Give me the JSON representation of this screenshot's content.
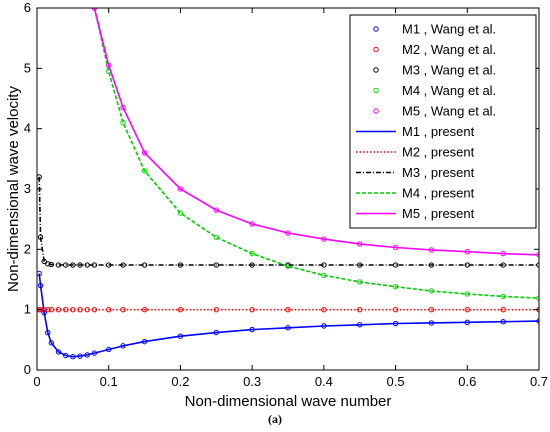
{
  "caption": "(a)",
  "chart_data": {
    "type": "line",
    "xlabel": "Non-dimensional wave number",
    "ylabel": "Non-dimensional wave velocity",
    "xlim": [
      0,
      0.7
    ],
    "ylim": [
      0,
      6
    ],
    "xticks": [
      0,
      0.1,
      0.2,
      0.3,
      0.4,
      0.5,
      0.6,
      0.7
    ],
    "xtick_labels": [
      "0",
      "0.1",
      "0.2",
      "0.3",
      "0.4",
      "0.5",
      "0.6",
      "0.7"
    ],
    "yticks": [
      0,
      1,
      2,
      3,
      4,
      5,
      6
    ],
    "ytick_labels": [
      "0",
      "1",
      "2",
      "3",
      "4",
      "5",
      "6"
    ],
    "grid": false,
    "legend_position": "top-right",
    "x": [
      0.003,
      0.005,
      0.01,
      0.015,
      0.02,
      0.03,
      0.04,
      0.05,
      0.06,
      0.07,
      0.08,
      0.1,
      0.12,
      0.15,
      0.2,
      0.25,
      0.3,
      0.35,
      0.4,
      0.45,
      0.5,
      0.55,
      0.6,
      0.65,
      0.7
    ],
    "series": [
      {
        "name": "M1 , Wang et al.",
        "color": "#0000ff",
        "style": "markers",
        "values": [
          1.6,
          1.4,
          0.95,
          0.62,
          0.45,
          0.3,
          0.24,
          0.22,
          0.23,
          0.25,
          0.28,
          0.34,
          0.4,
          0.47,
          0.56,
          0.62,
          0.67,
          0.7,
          0.73,
          0.75,
          0.77,
          0.78,
          0.79,
          0.8,
          0.81
        ]
      },
      {
        "name": "M2 , Wang et al.",
        "color": "#ff0000",
        "style": "markers",
        "values": [
          1.0,
          1.0,
          1.0,
          1.0,
          1.0,
          1.0,
          1.0,
          1.0,
          1.0,
          1.0,
          1.0,
          1.0,
          1.0,
          1.0,
          1.0,
          1.0,
          1.0,
          1.0,
          1.0,
          1.0,
          1.0,
          1.0,
          1.0,
          1.0,
          1.0
        ]
      },
      {
        "name": "M3 , Wang et al.",
        "color": "#000000",
        "style": "markers",
        "values": [
          3.2,
          2.2,
          1.8,
          1.76,
          1.75,
          1.74,
          1.74,
          1.74,
          1.74,
          1.74,
          1.74,
          1.74,
          1.74,
          1.74,
          1.74,
          1.74,
          1.74,
          1.74,
          1.74,
          1.74,
          1.74,
          1.74,
          1.74,
          1.74,
          1.74
        ]
      },
      {
        "name": "M4 , Wang et al.",
        "color": "#00dd00",
        "style": "markers",
        "values": [
          null,
          null,
          null,
          null,
          null,
          null,
          null,
          null,
          null,
          null,
          6.0,
          4.95,
          4.1,
          3.3,
          2.6,
          2.2,
          1.93,
          1.72,
          1.57,
          1.46,
          1.38,
          1.31,
          1.26,
          1.22,
          1.19
        ]
      },
      {
        "name": "M5 , Wang et al.",
        "color": "#ff00ff",
        "style": "markers",
        "values": [
          null,
          null,
          null,
          null,
          null,
          null,
          null,
          null,
          null,
          null,
          6.0,
          5.05,
          4.35,
          3.6,
          3.0,
          2.65,
          2.42,
          2.27,
          2.17,
          2.09,
          2.03,
          1.99,
          1.96,
          1.93,
          1.91
        ]
      },
      {
        "name": "M1 , present",
        "color": "#0000ff",
        "style": "solid",
        "values": [
          1.6,
          1.4,
          0.95,
          0.62,
          0.45,
          0.3,
          0.24,
          0.22,
          0.23,
          0.25,
          0.28,
          0.34,
          0.4,
          0.47,
          0.56,
          0.62,
          0.67,
          0.7,
          0.73,
          0.75,
          0.77,
          0.78,
          0.79,
          0.8,
          0.81
        ]
      },
      {
        "name": "M2 , present",
        "color": "#ff0000",
        "style": "dotted",
        "values": [
          1.0,
          1.0,
          1.0,
          1.0,
          1.0,
          1.0,
          1.0,
          1.0,
          1.0,
          1.0,
          1.0,
          1.0,
          1.0,
          1.0,
          1.0,
          1.0,
          1.0,
          1.0,
          1.0,
          1.0,
          1.0,
          1.0,
          1.0,
          1.0,
          1.0
        ]
      },
      {
        "name": "M3 , present",
        "color": "#000000",
        "style": "dashdot",
        "values": [
          3.2,
          2.2,
          1.8,
          1.76,
          1.75,
          1.74,
          1.74,
          1.74,
          1.74,
          1.74,
          1.74,
          1.74,
          1.74,
          1.74,
          1.74,
          1.74,
          1.74,
          1.74,
          1.74,
          1.74,
          1.74,
          1.74,
          1.74,
          1.74,
          1.74
        ]
      },
      {
        "name": "M4 , present",
        "color": "#00cc00",
        "style": "dashed",
        "values": [
          null,
          null,
          null,
          null,
          null,
          null,
          null,
          null,
          null,
          null,
          6.0,
          4.95,
          4.1,
          3.3,
          2.6,
          2.2,
          1.93,
          1.72,
          1.57,
          1.46,
          1.38,
          1.31,
          1.26,
          1.22,
          1.19
        ]
      },
      {
        "name": "M5 , present",
        "color": "#ff00ff",
        "style": "solid",
        "values": [
          null,
          null,
          null,
          null,
          null,
          null,
          null,
          null,
          null,
          null,
          6.0,
          5.05,
          4.35,
          3.6,
          3.0,
          2.65,
          2.42,
          2.27,
          2.17,
          2.09,
          2.03,
          1.99,
          1.96,
          1.93,
          1.91
        ]
      }
    ]
  }
}
